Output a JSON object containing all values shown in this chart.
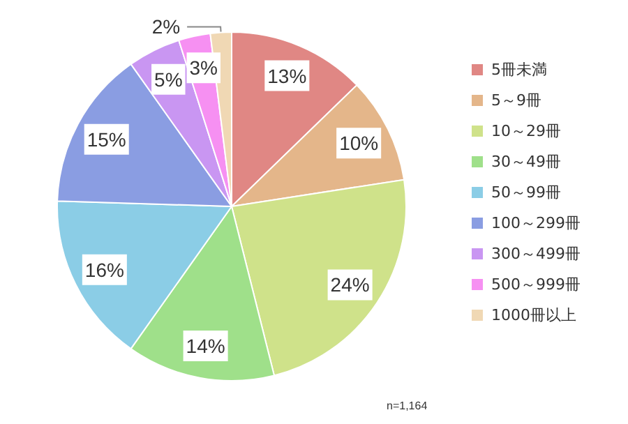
{
  "chart_data": {
    "type": "pie",
    "categories": [
      "5冊未満",
      "5～9冊",
      "10～29冊",
      "30～49冊",
      "50～99冊",
      "100～299冊",
      "300～499冊",
      "500～999冊",
      "1000冊以上"
    ],
    "values": [
      13,
      10,
      24,
      14,
      16,
      15,
      5,
      3,
      2
    ],
    "value_labels": [
      "13%",
      "10%",
      "24%",
      "14%",
      "16%",
      "15%",
      "5%",
      "3%",
      "2%"
    ],
    "colors": [
      "#e08784",
      "#e4b68a",
      "#cfe28a",
      "#9fe08a",
      "#8bcde6",
      "#8a9de2",
      "#c996f2",
      "#f690f2",
      "#f0d8b4"
    ],
    "legend": "right",
    "annotations": [
      "n=1,164"
    ]
  }
}
